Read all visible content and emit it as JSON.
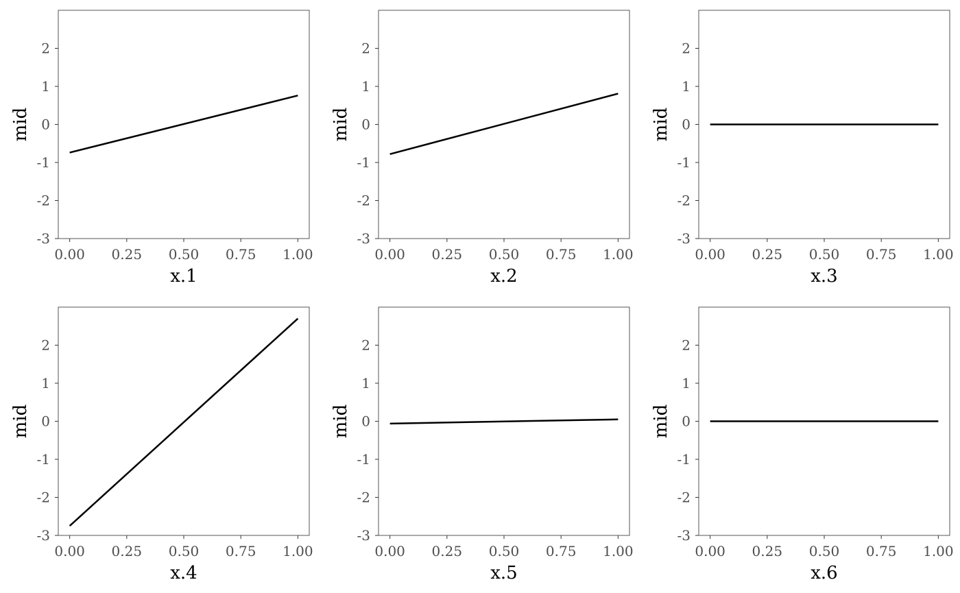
{
  "chart_data": [
    {
      "type": "line",
      "xlabel": "x.1",
      "ylabel": "mid",
      "xlim": [
        -0.05,
        1.05
      ],
      "ylim": [
        -3,
        3
      ],
      "xticks": [
        "0.00",
        "0.25",
        "0.50",
        "0.75",
        "1.00"
      ],
      "yticks": [
        "-3",
        "-2",
        "-1",
        "0",
        "1",
        "2"
      ],
      "x": [
        0,
        1
      ],
      "y": [
        -0.74,
        0.76
      ]
    },
    {
      "type": "line",
      "xlabel": "x.2",
      "ylabel": "mid",
      "xlim": [
        -0.05,
        1.05
      ],
      "ylim": [
        -3,
        3
      ],
      "xticks": [
        "0.00",
        "0.25",
        "0.50",
        "0.75",
        "1.00"
      ],
      "yticks": [
        "-3",
        "-2",
        "-1",
        "0",
        "1",
        "2"
      ],
      "x": [
        0,
        1
      ],
      "y": [
        -0.78,
        0.81
      ]
    },
    {
      "type": "line",
      "xlabel": "x.3",
      "ylabel": "mid",
      "xlim": [
        -0.05,
        1.05
      ],
      "ylim": [
        -3,
        3
      ],
      "xticks": [
        "0.00",
        "0.25",
        "0.50",
        "0.75",
        "1.00"
      ],
      "yticks": [
        "-3",
        "-2",
        "-1",
        "0",
        "1",
        "2"
      ],
      "x": [
        0,
        1
      ],
      "y": [
        0,
        0
      ]
    },
    {
      "type": "line",
      "xlabel": "x.4",
      "ylabel": "mid",
      "xlim": [
        -0.05,
        1.05
      ],
      "ylim": [
        -3,
        3
      ],
      "xticks": [
        "0.00",
        "0.25",
        "0.50",
        "0.75",
        "1.00"
      ],
      "yticks": [
        "-3",
        "-2",
        "-1",
        "0",
        "1",
        "2"
      ],
      "x": [
        0,
        1
      ],
      "y": [
        -2.75,
        2.7
      ]
    },
    {
      "type": "line",
      "xlabel": "x.5",
      "ylabel": "mid",
      "xlim": [
        -0.05,
        1.05
      ],
      "ylim": [
        -3,
        3
      ],
      "xticks": [
        "0.00",
        "0.25",
        "0.50",
        "0.75",
        "1.00"
      ],
      "yticks": [
        "-3",
        "-2",
        "-1",
        "0",
        "1",
        "2"
      ],
      "x": [
        0,
        1
      ],
      "y": [
        -0.06,
        0.05
      ]
    },
    {
      "type": "line",
      "xlabel": "x.6",
      "ylabel": "mid",
      "xlim": [
        -0.05,
        1.05
      ],
      "ylim": [
        -3,
        3
      ],
      "xticks": [
        "0.00",
        "0.25",
        "0.50",
        "0.75",
        "1.00"
      ],
      "yticks": [
        "-3",
        "-2",
        "-1",
        "0",
        "1",
        "2"
      ],
      "x": [
        0,
        1
      ],
      "y": [
        0,
        0
      ]
    }
  ]
}
